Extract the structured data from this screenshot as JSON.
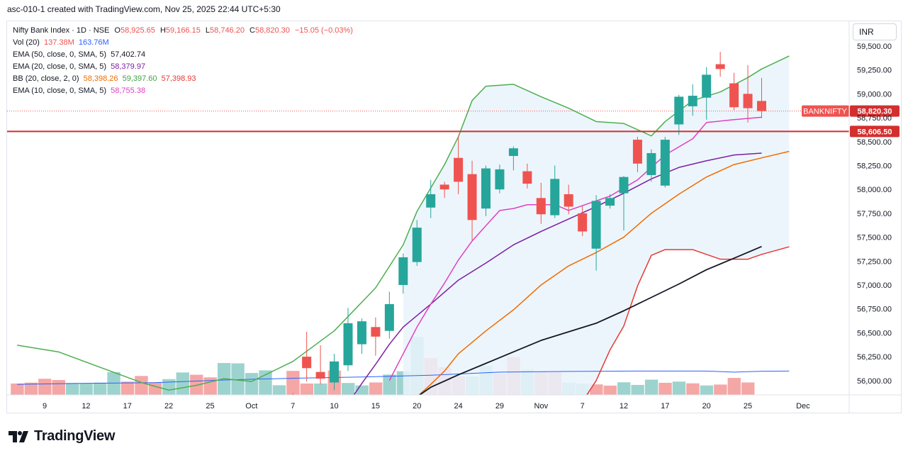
{
  "header": {
    "title": "asc-010-1 created with TradingView.com, Nov 25, 2025 22:44 UTC+5:30"
  },
  "legend": {
    "symbol": "Nifty Bank Index · 1D · NSE",
    "ohlc": {
      "o_label": "O",
      "o": "58,925.65",
      "h_label": "H",
      "h": "59,166.15",
      "l_label": "L",
      "l": "58,746.20",
      "c_label": "C",
      "c": "58,820.30",
      "change": "−15.05 (−0.03%)"
    },
    "vol": {
      "label": "Vol (20)",
      "v1": "137.38",
      "v1_unit": "M",
      "v2": "163.76",
      "v2_unit": "M"
    },
    "ema50": {
      "label": "EMA (50, close, 0, SMA, 5)",
      "value": "57,402.74"
    },
    "ema20": {
      "label": "EMA (20, close, 0, SMA, 5)",
      "value": "58,379.97"
    },
    "bb": {
      "label": "BB (20, close, 2, 0)",
      "basis": "58,398.26",
      "upper": "59,397.60",
      "lower": "57,398.93"
    },
    "ema10": {
      "label": "EMA (10, close, 0, SMA, 5)",
      "value": "58,755.38"
    }
  },
  "currency_button": "INR",
  "price_labels": {
    "symbol_tag": "BANKNIFTY",
    "last_price": "58,820.30",
    "hline_price": "58,606.50"
  },
  "colors": {
    "up": "#26a69a",
    "down": "#ef5350",
    "vol_up": "#9dd3ce",
    "vol_down": "#f5a7a6",
    "bb_upper": "#4caf50",
    "bb_lower": "#e53935",
    "bb_basis": "#ef6c00",
    "bb_fill": "#eaf3fb",
    "ema10": "#e040c0",
    "ema20": "#ef6c00",
    "ema50": "#131722",
    "ema_dark": "#7b1fa2",
    "vol_ma": "#2962ff",
    "hline": "#d32f2f"
  },
  "brand": {
    "name": "TradingView"
  },
  "chart_data": {
    "type": "candlestick",
    "y_axis": {
      "min": 55850,
      "max": 59700,
      "ticks": [
        56000,
        56250,
        56500,
        56750,
        57000,
        57250,
        57500,
        57750,
        58000,
        58250,
        58500,
        58750,
        59000,
        59250,
        59500
      ],
      "tick_labels": [
        "56,000.00",
        "56,250.00",
        "56,500.00",
        "56,750.00",
        "57,000.00",
        "57,250.00",
        "57,500.00",
        "57,750.00",
        "58,000.00",
        "58,250.00",
        "58,500.00",
        "58,750.00",
        "59,000.00",
        "59,250.00",
        "59,500.00"
      ]
    },
    "x_axis": {
      "ticks": [
        {
          "label": "9",
          "slot": 2
        },
        {
          "label": "12",
          "slot": 5
        },
        {
          "label": "17",
          "slot": 8
        },
        {
          "label": "22",
          "slot": 11
        },
        {
          "label": "25",
          "slot": 14
        },
        {
          "label": "Oct",
          "slot": 17
        },
        {
          "label": "7",
          "slot": 20
        },
        {
          "label": "10",
          "slot": 23
        },
        {
          "label": "15",
          "slot": 26
        },
        {
          "label": "20",
          "slot": 29
        },
        {
          "label": "24",
          "slot": 32
        },
        {
          "label": "29",
          "slot": 35
        },
        {
          "label": "Nov",
          "slot": 38
        },
        {
          "label": "7",
          "slot": 41
        },
        {
          "label": "12",
          "slot": 44
        },
        {
          "label": "17",
          "slot": 47
        },
        {
          "label": "20",
          "slot": 50
        },
        {
          "label": "25",
          "slot": 53
        },
        {
          "label": "Dec",
          "slot": 57
        }
      ]
    },
    "hline": 58606.5,
    "candles_first_slot": 20,
    "candles": [
      {
        "o": 55830,
        "h": 55870,
        "l": 55770,
        "c": 55820
      },
      {
        "o": 56250,
        "h": 56510,
        "l": 55990,
        "c": 56130
      },
      {
        "o": 56090,
        "h": 56370,
        "l": 55960,
        "c": 56020
      },
      {
        "o": 55980,
        "h": 56280,
        "l": 55900,
        "c": 56200
      },
      {
        "o": 56160,
        "h": 56760,
        "l": 56100,
        "c": 56600
      },
      {
        "o": 56380,
        "h": 56650,
        "l": 56280,
        "c": 56620
      },
      {
        "o": 56560,
        "h": 56660,
        "l": 56260,
        "c": 56460
      },
      {
        "o": 56520,
        "h": 56930,
        "l": 56440,
        "c": 56800
      },
      {
        "o": 57000,
        "h": 57330,
        "l": 56910,
        "c": 57290
      },
      {
        "o": 57240,
        "h": 57680,
        "l": 57200,
        "c": 57600
      },
      {
        "o": 57810,
        "h": 58100,
        "l": 57700,
        "c": 57950
      },
      {
        "o": 58050,
        "h": 58080,
        "l": 57910,
        "c": 58000
      },
      {
        "o": 58330,
        "h": 58560,
        "l": 57950,
        "c": 58080
      },
      {
        "o": 58160,
        "h": 58300,
        "l": 57470,
        "c": 57680
      },
      {
        "o": 57800,
        "h": 58250,
        "l": 57720,
        "c": 58220
      },
      {
        "o": 58000,
        "h": 58260,
        "l": 57960,
        "c": 58210
      },
      {
        "o": 58350,
        "h": 58450,
        "l": 58200,
        "c": 58430
      },
      {
        "o": 58190,
        "h": 58270,
        "l": 58010,
        "c": 58060
      },
      {
        "o": 57910,
        "h": 58070,
        "l": 57640,
        "c": 57740
      },
      {
        "o": 57730,
        "h": 58250,
        "l": 57700,
        "c": 58110
      },
      {
        "o": 57950,
        "h": 58050,
        "l": 57740,
        "c": 57820
      },
      {
        "o": 57750,
        "h": 57830,
        "l": 57510,
        "c": 57560
      },
      {
        "o": 57380,
        "h": 57940,
        "l": 57150,
        "c": 57880
      },
      {
        "o": 57830,
        "h": 57950,
        "l": 57800,
        "c": 57910
      },
      {
        "o": 57960,
        "h": 58140,
        "l": 57570,
        "c": 58130
      },
      {
        "o": 58520,
        "h": 58550,
        "l": 58180,
        "c": 58270
      },
      {
        "o": 58150,
        "h": 58420,
        "l": 58080,
        "c": 58380
      },
      {
        "o": 58040,
        "h": 58550,
        "l": 58020,
        "c": 58520
      },
      {
        "o": 58680,
        "h": 58990,
        "l": 58570,
        "c": 58970
      },
      {
        "o": 58870,
        "h": 59100,
        "l": 58770,
        "c": 58980
      },
      {
        "o": 58960,
        "h": 59280,
        "l": 58730,
        "c": 59200
      },
      {
        "o": 59310,
        "h": 59440,
        "l": 59180,
        "c": 59260
      },
      {
        "o": 59110,
        "h": 59220,
        "l": 58830,
        "c": 58860
      },
      {
        "o": 59000,
        "h": 59300,
        "l": 58700,
        "c": 58850
      },
      {
        "o": 58925.65,
        "h": 59166.15,
        "l": 58746.2,
        "c": 58820.3
      }
    ],
    "volume_scale_max": 1000,
    "volume_first_slot": 0,
    "volume": [
      {
        "v": 515,
        "up": false
      },
      {
        "v": 520,
        "up": false
      },
      {
        "v": 542,
        "up": false
      },
      {
        "v": 535,
        "up": false
      },
      {
        "v": 518,
        "up": true
      },
      {
        "v": 515,
        "up": true
      },
      {
        "v": 520,
        "up": true
      },
      {
        "v": 580,
        "up": true
      },
      {
        "v": 526,
        "up": false
      },
      {
        "v": 558,
        "up": false
      },
      {
        "v": 522,
        "up": false
      },
      {
        "v": 540,
        "up": true
      },
      {
        "v": 578,
        "up": true
      },
      {
        "v": 565,
        "up": false
      },
      {
        "v": 550,
        "up": false
      },
      {
        "v": 632,
        "up": true
      },
      {
        "v": 630,
        "up": true
      },
      {
        "v": 575,
        "up": true
      },
      {
        "v": 590,
        "up": true
      },
      {
        "v": 505,
        "up": true
      },
      {
        "v": 587,
        "up": false
      },
      {
        "v": 515,
        "up": false
      },
      {
        "v": 515,
        "up": true
      },
      {
        "v": 589,
        "up": false
      },
      {
        "v": 518,
        "up": true
      },
      {
        "v": 504,
        "up": true
      },
      {
        "v": 521,
        "up": false
      },
      {
        "v": 566,
        "up": true
      },
      {
        "v": 585,
        "up": true
      },
      {
        "v": 780,
        "up": true
      },
      {
        "v": 660,
        "up": false
      },
      {
        "v": 608,
        "up": false
      },
      {
        "v": 557,
        "up": false
      },
      {
        "v": 555,
        "up": true
      },
      {
        "v": 616,
        "up": true
      },
      {
        "v": 571,
        "up": false
      },
      {
        "v": 666,
        "up": false
      },
      {
        "v": 594,
        "up": true
      },
      {
        "v": 581,
        "up": false
      },
      {
        "v": 579,
        "up": false
      },
      {
        "v": 520,
        "up": true
      },
      {
        "v": 514,
        "up": true
      },
      {
        "v": 510,
        "up": false
      },
      {
        "v": 503,
        "up": false
      },
      {
        "v": 522,
        "up": true
      },
      {
        "v": 507,
        "up": true
      },
      {
        "v": 537,
        "up": true
      },
      {
        "v": 519,
        "up": false
      },
      {
        "v": 526,
        "up": true
      },
      {
        "v": 516,
        "up": false
      },
      {
        "v": 504,
        "up": true
      },
      {
        "v": 509,
        "up": false
      },
      {
        "v": 547,
        "up": false
      },
      {
        "v": 521,
        "up": false
      }
    ],
    "bb_upper": [
      [
        0,
        56370
      ],
      [
        3,
        56300
      ],
      [
        6,
        56140
      ],
      [
        9,
        55980
      ],
      [
        11,
        55900
      ],
      [
        13,
        55950
      ],
      [
        15,
        56020
      ],
      [
        17,
        55990
      ],
      [
        20,
        56200
      ],
      [
        23,
        56520
      ],
      [
        26,
        56970
      ],
      [
        28,
        57420
      ],
      [
        29,
        57770
      ],
      [
        31,
        58260
      ],
      [
        32,
        58550
      ],
      [
        33,
        58930
      ],
      [
        34,
        59080
      ],
      [
        36,
        59100
      ],
      [
        38,
        58970
      ],
      [
        40,
        58850
      ],
      [
        42,
        58710
      ],
      [
        44,
        58690
      ],
      [
        46,
        58560
      ],
      [
        47,
        58710
      ],
      [
        49,
        58930
      ],
      [
        51,
        59020
      ],
      [
        53,
        59170
      ],
      [
        54,
        59260
      ],
      [
        56,
        59396
      ]
    ],
    "bb_lower": [
      [
        41,
        55780
      ],
      [
        42,
        56000
      ],
      [
        43,
        56320
      ],
      [
        44,
        56570
      ],
      [
        45,
        56990
      ],
      [
        46,
        57310
      ],
      [
        47,
        57370
      ],
      [
        49,
        57370
      ],
      [
        51,
        57270
      ],
      [
        53,
        57270
      ],
      [
        54,
        57320
      ],
      [
        56,
        57400
      ]
    ],
    "bb_basis": [
      [
        29,
        55830
      ],
      [
        30,
        55960
      ],
      [
        31,
        56100
      ],
      [
        32,
        56280
      ],
      [
        34,
        56520
      ],
      [
        36,
        56740
      ],
      [
        38,
        57000
      ],
      [
        40,
        57200
      ],
      [
        42,
        57340
      ],
      [
        44,
        57500
      ],
      [
        46,
        57750
      ],
      [
        48,
        57950
      ],
      [
        50,
        58130
      ],
      [
        52,
        58260
      ],
      [
        54,
        58330
      ],
      [
        56,
        58398
      ]
    ],
    "ema10": [
      [
        27,
        56000
      ],
      [
        28,
        56280
      ],
      [
        29,
        56560
      ],
      [
        30,
        56800
      ],
      [
        31,
        57020
      ],
      [
        32,
        57260
      ],
      [
        33,
        57460
      ],
      [
        34,
        57620
      ],
      [
        35,
        57780
      ],
      [
        36,
        57800
      ],
      [
        37,
        57840
      ],
      [
        39,
        57840
      ],
      [
        40,
        57780
      ],
      [
        41,
        57830
      ],
      [
        43,
        57930
      ],
      [
        45,
        58100
      ],
      [
        47,
        58360
      ],
      [
        49,
        58530
      ],
      [
        50,
        58700
      ],
      [
        52,
        58730
      ],
      [
        54,
        58755
      ]
    ],
    "ema20": [
      [
        24,
        55760
      ],
      [
        25,
        55970
      ],
      [
        26,
        56170
      ],
      [
        27,
        56380
      ],
      [
        28,
        56560
      ],
      [
        30,
        56800
      ],
      [
        32,
        57050
      ],
      [
        34,
        57230
      ],
      [
        36,
        57420
      ],
      [
        38,
        57560
      ],
      [
        40,
        57690
      ],
      [
        42,
        57820
      ],
      [
        44,
        57960
      ],
      [
        46,
        58110
      ],
      [
        48,
        58230
      ],
      [
        50,
        58300
      ],
      [
        52,
        58360
      ],
      [
        54,
        58380
      ]
    ],
    "ema50": [
      [
        29,
        55830
      ],
      [
        30,
        55930
      ],
      [
        32,
        56060
      ],
      [
        34,
        56180
      ],
      [
        36,
        56300
      ],
      [
        38,
        56420
      ],
      [
        40,
        56510
      ],
      [
        42,
        56600
      ],
      [
        44,
        56730
      ],
      [
        46,
        56870
      ],
      [
        48,
        57010
      ],
      [
        50,
        57160
      ],
      [
        52,
        57280
      ],
      [
        54,
        57403
      ]
    ],
    "vol_ma": [
      [
        0,
        510
      ],
      [
        5,
        516
      ],
      [
        10,
        520
      ],
      [
        15,
        535
      ],
      [
        20,
        545
      ],
      [
        25,
        552
      ],
      [
        30,
        562
      ],
      [
        35,
        580
      ],
      [
        40,
        584
      ],
      [
        45,
        586
      ],
      [
        50,
        586
      ],
      [
        52,
        580
      ],
      [
        54,
        585
      ],
      [
        56,
        586
      ]
    ]
  }
}
